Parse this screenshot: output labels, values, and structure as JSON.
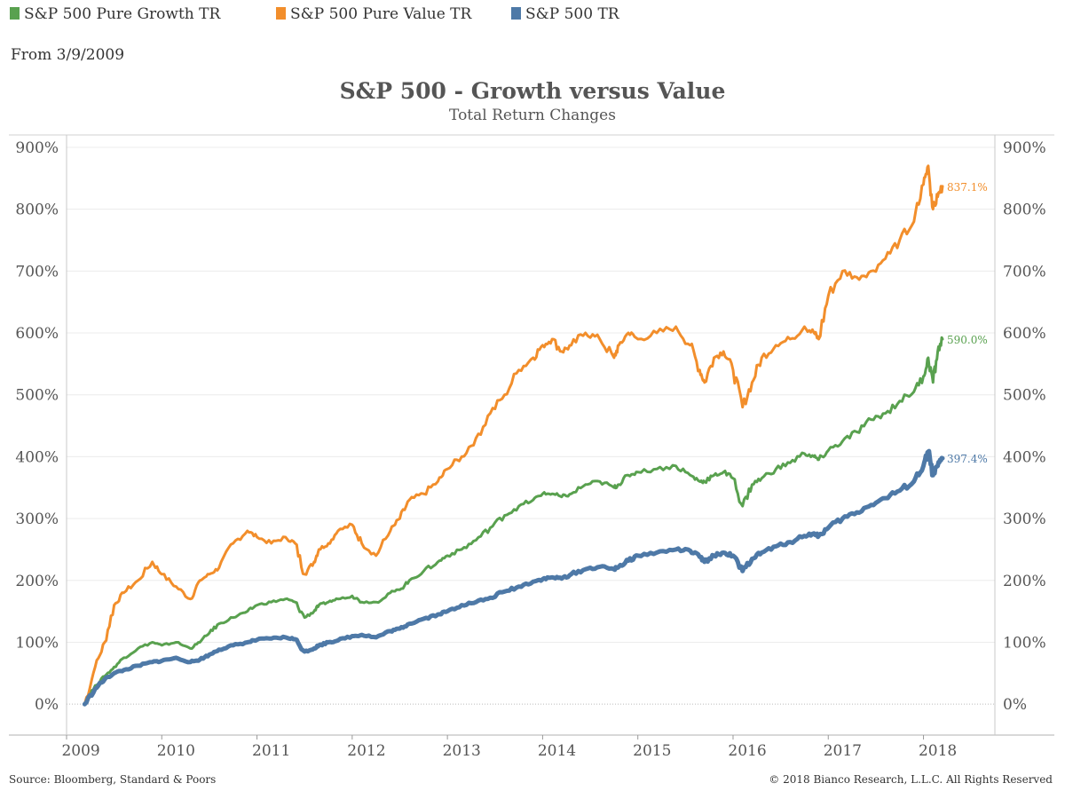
{
  "legend": {
    "items": [
      {
        "label": "S&P 500 Pure Growth TR",
        "color": "#59a14f"
      },
      {
        "label": "S&P 500 Pure Value TR",
        "color": "#f28e2b"
      },
      {
        "label": "S&P 500 TR",
        "color": "#4e79a7"
      }
    ]
  },
  "date_note": "From 3/9/2009",
  "footer": {
    "source": "Source: Bloomberg, Standard & Poors",
    "copyright": "© 2018 Bianco Research, L.L.C. All Rights Reserved"
  },
  "chart_data": {
    "type": "line",
    "title": "S&P 500 - Growth versus Value",
    "subtitle": "Total Return Changes",
    "xlabel": "",
    "ylabel": "",
    "x_ticks": [
      "2009",
      "2010",
      "2011",
      "2012",
      "2013",
      "2014",
      "2015",
      "2016",
      "2017",
      "2018"
    ],
    "y_ticks": [
      "0%",
      "100%",
      "200%",
      "300%",
      "400%",
      "500%",
      "600%",
      "700%",
      "800%",
      "900%"
    ],
    "xlim": [
      2009.0,
      2018.75
    ],
    "ylim": [
      -50,
      920
    ],
    "grid": true,
    "series": [
      {
        "name": "S&P 500 Pure Value TR",
        "color": "#f28e2b",
        "end_label": "837.1%",
        "x": [
          2009.19,
          2009.3,
          2009.4,
          2009.5,
          2009.6,
          2009.75,
          2009.9,
          2010.0,
          2010.15,
          2010.3,
          2010.4,
          2010.5,
          2010.6,
          2010.75,
          2010.9,
          2011.0,
          2011.15,
          2011.3,
          2011.4,
          2011.5,
          2011.6,
          2011.65,
          2011.75,
          2011.85,
          2012.0,
          2012.1,
          2012.25,
          2012.4,
          2012.5,
          2012.6,
          2012.75,
          2012.9,
          2013.0,
          2013.15,
          2013.3,
          2013.45,
          2013.6,
          2013.75,
          2013.9,
          2014.0,
          2014.1,
          2014.2,
          2014.3,
          2014.45,
          2014.6,
          2014.75,
          2014.8,
          2014.9,
          2015.0,
          2015.2,
          2015.4,
          2015.55,
          2015.65,
          2015.7,
          2015.8,
          2015.9,
          2016.0,
          2016.1,
          2016.2,
          2016.3,
          2016.45,
          2016.6,
          2016.75,
          2016.85,
          2016.9,
          2017.0,
          2017.15,
          2017.3,
          2017.45,
          2017.6,
          2017.75,
          2017.9,
          2018.0,
          2018.05,
          2018.1,
          2018.15,
          2018.2
        ],
        "y": [
          0,
          60,
          100,
          160,
          180,
          200,
          230,
          210,
          190,
          170,
          200,
          210,
          220,
          260,
          280,
          270,
          260,
          270,
          260,
          210,
          230,
          250,
          260,
          280,
          290,
          260,
          240,
          280,
          300,
          330,
          340,
          360,
          380,
          400,
          430,
          470,
          500,
          540,
          560,
          580,
          590,
          570,
          580,
          600,
          590,
          560,
          580,
          600,
          590,
          600,
          610,
          580,
          540,
          520,
          560,
          570,
          540,
          480,
          520,
          560,
          580,
          590,
          610,
          600,
          590,
          660,
          700,
          690,
          700,
          720,
          750,
          780,
          840,
          870,
          800,
          820,
          837.1
        ]
      },
      {
        "name": "S&P 500 Pure Growth TR",
        "color": "#59a14f",
        "end_label": "590.0%",
        "x": [
          2009.19,
          2009.3,
          2009.4,
          2009.5,
          2009.6,
          2009.75,
          2009.9,
          2010.0,
          2010.15,
          2010.3,
          2010.4,
          2010.5,
          2010.6,
          2010.75,
          2010.9,
          2011.0,
          2011.15,
          2011.3,
          2011.4,
          2011.5,
          2011.6,
          2011.65,
          2011.75,
          2011.85,
          2012.0,
          2012.1,
          2012.25,
          2012.4,
          2012.5,
          2012.6,
          2012.75,
          2012.9,
          2013.0,
          2013.15,
          2013.3,
          2013.45,
          2013.6,
          2013.75,
          2013.9,
          2014.0,
          2014.1,
          2014.2,
          2014.3,
          2014.45,
          2014.6,
          2014.75,
          2014.8,
          2014.9,
          2015.0,
          2015.2,
          2015.4,
          2015.55,
          2015.65,
          2015.7,
          2015.8,
          2015.9,
          2016.0,
          2016.1,
          2016.2,
          2016.3,
          2016.45,
          2016.6,
          2016.75,
          2016.85,
          2016.9,
          2017.0,
          2017.15,
          2017.3,
          2017.45,
          2017.6,
          2017.75,
          2017.9,
          2018.0,
          2018.05,
          2018.1,
          2018.15,
          2018.2
        ],
        "y": [
          0,
          30,
          45,
          60,
          75,
          90,
          100,
          95,
          100,
          90,
          100,
          115,
          130,
          140,
          150,
          160,
          165,
          170,
          165,
          140,
          150,
          160,
          165,
          170,
          175,
          165,
          165,
          180,
          185,
          200,
          215,
          230,
          240,
          250,
          265,
          285,
          305,
          320,
          330,
          340,
          340,
          335,
          340,
          355,
          360,
          350,
          355,
          370,
          375,
          380,
          385,
          370,
          360,
          360,
          370,
          375,
          365,
          320,
          355,
          365,
          380,
          390,
          405,
          400,
          395,
          410,
          425,
          440,
          460,
          470,
          490,
          505,
          530,
          560,
          520,
          570,
          590.0
        ]
      },
      {
        "name": "S&P 500 TR",
        "color": "#4e79a7",
        "end_label": "397.4%",
        "x": [
          2009.19,
          2009.3,
          2009.4,
          2009.5,
          2009.6,
          2009.75,
          2009.9,
          2010.0,
          2010.15,
          2010.3,
          2010.4,
          2010.5,
          2010.6,
          2010.75,
          2010.9,
          2011.0,
          2011.15,
          2011.3,
          2011.4,
          2011.5,
          2011.6,
          2011.65,
          2011.75,
          2011.85,
          2012.0,
          2012.1,
          2012.25,
          2012.4,
          2012.5,
          2012.6,
          2012.75,
          2012.9,
          2013.0,
          2013.15,
          2013.3,
          2013.45,
          2013.6,
          2013.75,
          2013.9,
          2014.0,
          2014.1,
          2014.2,
          2014.3,
          2014.45,
          2014.6,
          2014.75,
          2014.8,
          2014.9,
          2015.0,
          2015.2,
          2015.4,
          2015.55,
          2015.65,
          2015.7,
          2015.8,
          2015.9,
          2016.0,
          2016.1,
          2016.2,
          2016.3,
          2016.45,
          2016.6,
          2016.75,
          2016.85,
          2016.9,
          2017.0,
          2017.15,
          2017.3,
          2017.45,
          2017.6,
          2017.75,
          2017.9,
          2018.0,
          2018.05,
          2018.1,
          2018.15,
          2018.2
        ],
        "y": [
          0,
          25,
          40,
          50,
          55,
          62,
          68,
          70,
          75,
          68,
          72,
          80,
          88,
          95,
          100,
          104,
          106,
          108,
          105,
          85,
          90,
          95,
          100,
          103,
          110,
          112,
          108,
          118,
          122,
          130,
          138,
          145,
          150,
          160,
          165,
          172,
          182,
          190,
          198,
          202,
          205,
          203,
          210,
          218,
          222,
          218,
          222,
          232,
          240,
          245,
          250,
          248,
          238,
          230,
          240,
          245,
          240,
          215,
          235,
          245,
          255,
          262,
          272,
          276,
          272,
          285,
          300,
          310,
          322,
          333,
          345,
          360,
          385,
          408,
          370,
          385,
          397.4
        ]
      }
    ]
  }
}
